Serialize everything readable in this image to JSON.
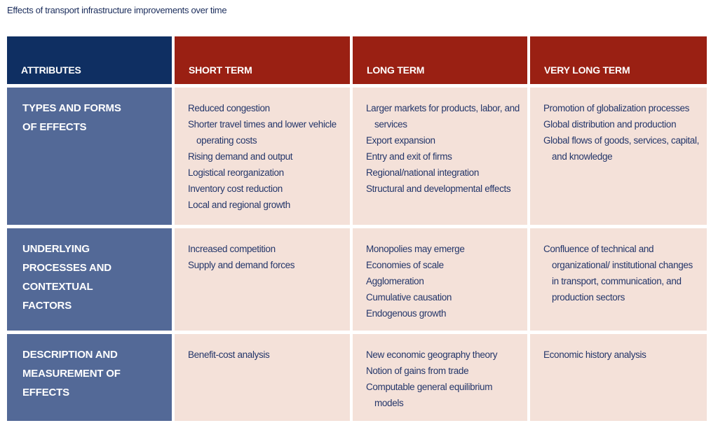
{
  "title": "Effects of transport infrastructure improvements over time",
  "table": {
    "header": [
      "ATTRIBUTES",
      "SHORT TERM",
      "LONG TERM",
      "VERY LONG TERM"
    ],
    "rows": [
      {
        "label": "TYPES AND FORMS OF EFFECTS",
        "cells": [
          [
            "Reduced congestion",
            "Shorter travel times and lower vehicle operating costs",
            "Rising demand and output",
            "Logistical reorganization",
            "Inventory cost reduction",
            "Local and regional growth"
          ],
          [
            "Larger markets for products, labor, and services",
            "Export expansion",
            "Entry and exit of firms",
            "Regional/national integration",
            "Structural and developmental effects"
          ],
          [
            "Promotion of globalization processes",
            "Global distribution and production",
            "Global flows of goods, services, capital, and knowledge"
          ]
        ]
      },
      {
        "label": "UNDERLYING PROCESSES AND CONTEXTUAL FACTORS",
        "cells": [
          [
            "Increased competition",
            "Supply and demand forces"
          ],
          [
            "Monopolies may emerge",
            "Economies of scale",
            "Agglomeration",
            "Cumulative causation",
            "Endogenous growth"
          ],
          [
            "Confluence of technical and organizational/ institutional changes in transport, communication, and production sectors"
          ]
        ]
      },
      {
        "label": "DESCRIPTION AND MEASUREMENT OF EFFECTS",
        "cells": [
          [
            "Benefit-cost analysis"
          ],
          [
            "New economic geography theory",
            "Notion of gains from trade",
            "Computable general equilibrium models"
          ],
          [
            "Economic history analysis"
          ]
        ]
      }
    ]
  }
}
